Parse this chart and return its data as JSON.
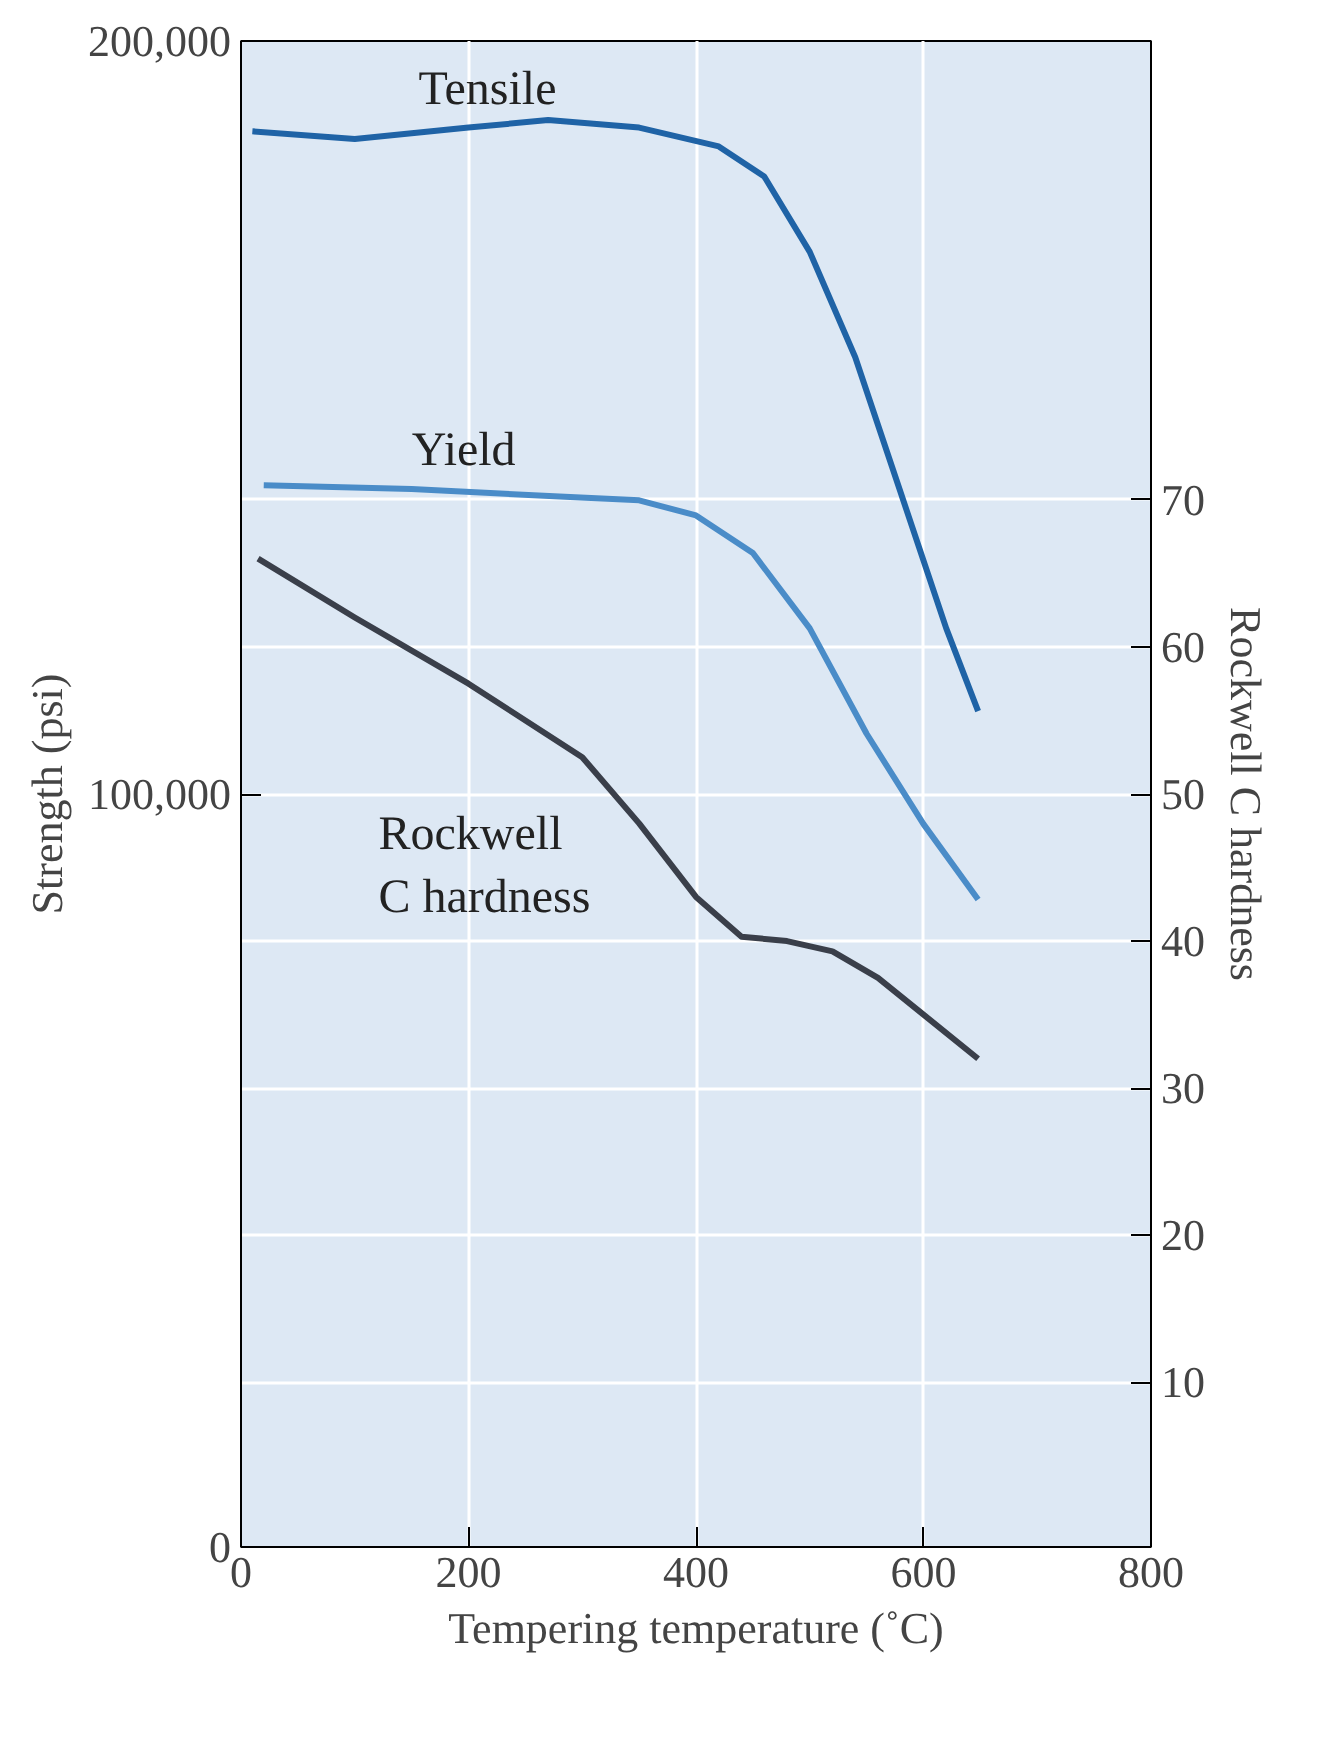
{
  "chart_data": {
    "type": "line",
    "xlabel": "Tempering temperature (˚C)",
    "ylabel": "Strength (psi)",
    "y2label": "Rockwell C hardness",
    "xlim": [
      0,
      800
    ],
    "xticks": [
      0,
      200,
      400,
      600,
      800
    ],
    "ylim": [
      0,
      200000
    ],
    "yticks": [
      {
        "value": 0,
        "label": "0"
      },
      {
        "value": 100000,
        "label": "100,000"
      },
      {
        "value": 200000,
        "label": "200,000"
      }
    ],
    "y2lim": [
      -1.2,
      101.2
    ],
    "y2ticks": [
      10,
      20,
      30,
      40,
      50,
      60,
      70
    ],
    "grid": true,
    "legend": false,
    "marker": "none",
    "line_style": "solid",
    "series": [
      {
        "name": "Tensile",
        "color": "#1f63a6",
        "x": [
          10,
          100,
          200,
          270,
          350,
          420,
          460,
          500,
          540,
          580,
          620,
          648
        ],
        "values": [
          188000,
          187000,
          188500,
          189500,
          188500,
          186000,
          182000,
          172000,
          158000,
          140000,
          122000,
          111000
        ]
      },
      {
        "name": "Yield",
        "color": "#4a8cc8",
        "x": [
          20,
          150,
          280,
          350,
          400,
          450,
          500,
          550,
          600,
          648
        ],
        "values": [
          141000,
          140500,
          139500,
          139000,
          137000,
          132000,
          122000,
          108000,
          96000,
          86000
        ]
      },
      {
        "name": "Rockwell\nC hardness",
        "color": "#3a3f4a",
        "axis": "y2",
        "x": [
          15,
          100,
          200,
          300,
          350,
          400,
          440,
          480,
          520,
          560,
          600,
          648
        ],
        "values": [
          66,
          62,
          57.5,
          52.5,
          48,
          43,
          40.3,
          40,
          39.3,
          37.5,
          35,
          32
        ]
      }
    ]
  }
}
